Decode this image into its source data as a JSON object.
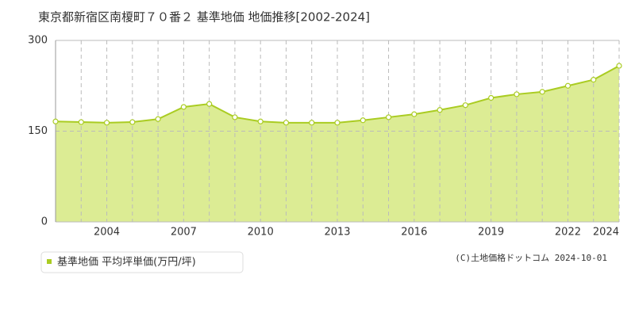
{
  "chart_data": {
    "type": "area",
    "title": "東京都新宿区南榎町７０番２ 基準地価 地価推移[2002-2024]",
    "x": [
      2002,
      2003,
      2004,
      2005,
      2006,
      2007,
      2008,
      2009,
      2010,
      2011,
      2012,
      2013,
      2014,
      2015,
      2016,
      2017,
      2018,
      2019,
      2020,
      2021,
      2022,
      2023,
      2024
    ],
    "series": [
      {
        "name": "基準地価 平均坪単価(万円/坪)",
        "color": "#aacc22",
        "values": [
          166,
          165,
          164,
          165,
          170,
          190,
          195,
          173,
          166,
          164,
          164,
          164,
          168,
          173,
          178,
          185,
          193,
          205,
          211,
          215,
          225,
          235,
          258
        ]
      }
    ],
    "xlim": [
      2002,
      2024
    ],
    "xticks": [
      2004,
      2007,
      2010,
      2013,
      2016,
      2019,
      2022,
      2024
    ],
    "ylim": [
      0,
      300
    ],
    "yticks": [
      0,
      150,
      300
    ],
    "grid": true,
    "annotation": "(C)土地価格ドットコム 2024-10-01"
  }
}
